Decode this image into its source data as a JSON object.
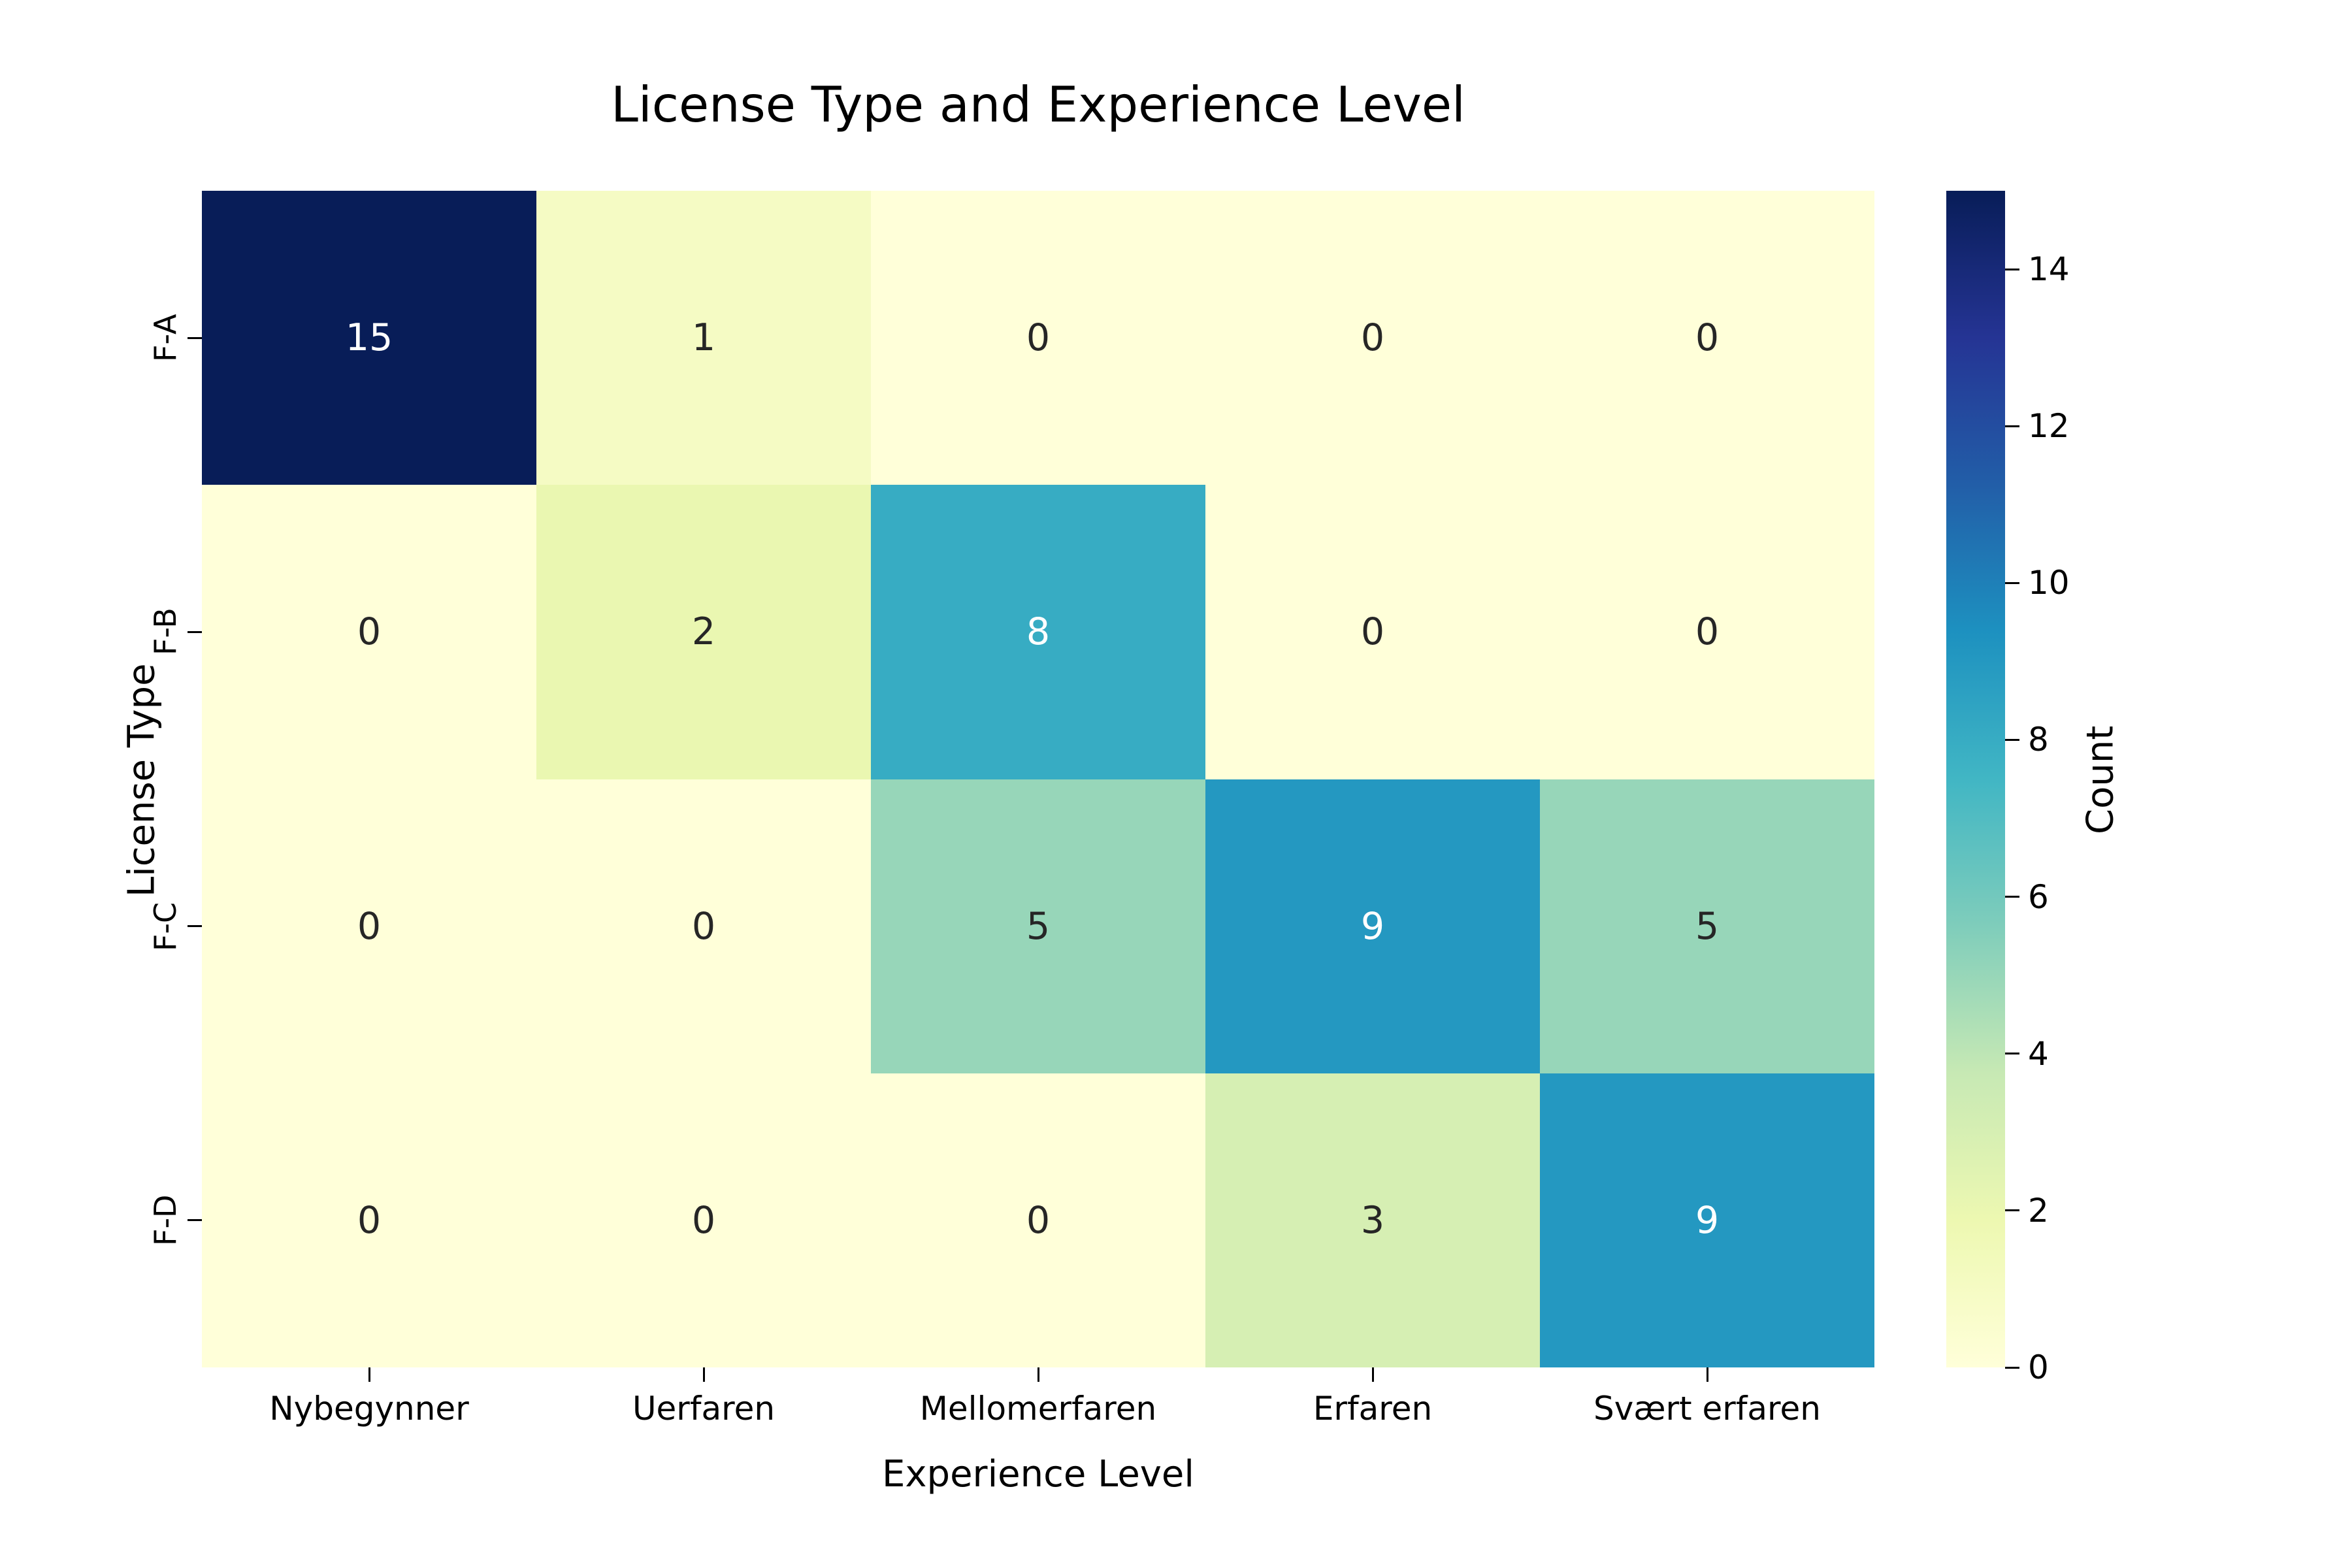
{
  "chart_data": {
    "type": "heatmap",
    "title": "License Type and Experience Level",
    "xlabel": "Experience Level",
    "ylabel": "License Type",
    "x_categories": [
      "Nybegynner",
      "Uerfaren",
      "Mellomerfaren",
      "Erfaren",
      "Svært erfaren"
    ],
    "y_categories": [
      "F-A",
      "F-B",
      "F-C",
      "F-D"
    ],
    "values": [
      [
        15,
        1,
        0,
        0,
        0
      ],
      [
        0,
        2,
        8,
        0,
        0
      ],
      [
        0,
        0,
        5,
        9,
        5
      ],
      [
        0,
        0,
        0,
        3,
        9
      ]
    ],
    "colorbar": {
      "label": "Count",
      "ticks": [
        0,
        2,
        4,
        6,
        8,
        10,
        12,
        14
      ],
      "min": 0,
      "max": 15
    },
    "colormap": "YlGnBu",
    "colormap_stops": [
      [
        0.0,
        "#ffffd9"
      ],
      [
        0.125,
        "#edf8b1"
      ],
      [
        0.25,
        "#c7e9b4"
      ],
      [
        0.375,
        "#7fcdbb"
      ],
      [
        0.5,
        "#41b6c4"
      ],
      [
        0.625,
        "#1d91c0"
      ],
      [
        0.75,
        "#225ea8"
      ],
      [
        0.875,
        "#253494"
      ],
      [
        1.0,
        "#081d58"
      ]
    ],
    "annotation_colors": {
      "dark": "#262626",
      "light": "#ffffff"
    },
    "legend_position": "right",
    "grid": false
  }
}
